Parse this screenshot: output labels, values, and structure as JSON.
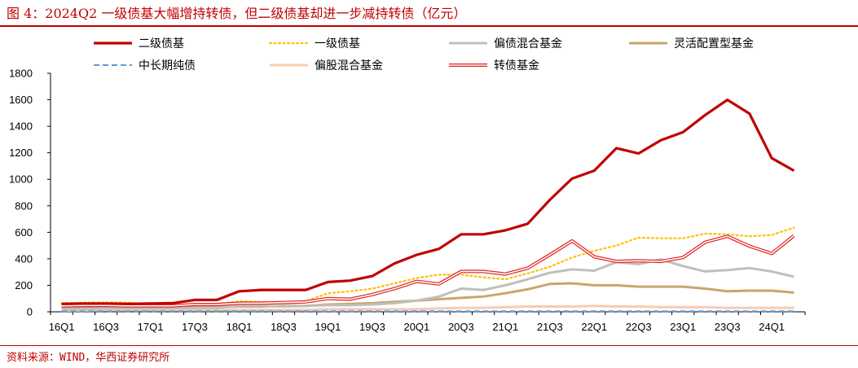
{
  "header": {
    "title": "图 4：2024Q2 一级债基大幅增持转债，但二级债基却进一步减持转债（亿元）"
  },
  "footer": {
    "source": "资料来源：WIND，华西证券研究所"
  },
  "chart_data": {
    "type": "line",
    "categories": [
      "16Q1",
      "16Q2",
      "16Q3",
      "16Q4",
      "17Q1",
      "17Q2",
      "17Q3",
      "17Q4",
      "18Q1",
      "18Q2",
      "18Q3",
      "18Q4",
      "19Q1",
      "19Q2",
      "19Q3",
      "19Q4",
      "20Q1",
      "20Q2",
      "20Q3",
      "20Q4",
      "21Q1",
      "21Q2",
      "21Q3",
      "21Q4",
      "22Q1",
      "22Q2",
      "22Q3",
      "22Q4",
      "23Q1",
      "23Q2",
      "23Q3",
      "23Q4",
      "24Q1",
      "24Q2"
    ],
    "tick_labels": [
      "16Q1",
      "16Q3",
      "17Q1",
      "17Q3",
      "18Q1",
      "18Q3",
      "19Q1",
      "19Q3",
      "20Q1",
      "20Q3",
      "21Q1",
      "21Q3",
      "22Q1",
      "22Q3",
      "23Q1",
      "23Q3",
      "24Q1"
    ],
    "ylim": [
      0,
      1800
    ],
    "yticks": [
      0,
      200,
      400,
      600,
      800,
      1000,
      1200,
      1400,
      1600,
      1800
    ],
    "grid": false,
    "legend_position": "top",
    "series": [
      {
        "name": "二级债基",
        "color": "#c00000",
        "style": "thick",
        "values": [
          60,
          62,
          62,
          60,
          62,
          65,
          90,
          90,
          155,
          165,
          165,
          165,
          225,
          235,
          270,
          365,
          430,
          475,
          585,
          585,
          615,
          665,
          845,
          1005,
          1065,
          1235,
          1195,
          1295,
          1355,
          1485,
          1600,
          1495,
          1160,
          1065
        ]
      },
      {
        "name": "一级债基",
        "color": "#ffc000",
        "style": "dotted",
        "values": [
          65,
          70,
          72,
          70,
          55,
          55,
          55,
          60,
          80,
          75,
          75,
          80,
          140,
          155,
          175,
          215,
          255,
          280,
          280,
          260,
          245,
          290,
          340,
          410,
          460,
          500,
          560,
          555,
          555,
          590,
          585,
          570,
          580,
          635
        ]
      },
      {
        "name": "偏债混合基金",
        "color": "#bfbfbf",
        "style": "solid",
        "values": [
          20,
          22,
          25,
          25,
          25,
          28,
          28,
          30,
          45,
          45,
          40,
          45,
          50,
          50,
          55,
          65,
          85,
          115,
          175,
          165,
          200,
          245,
          295,
          320,
          310,
          375,
          360,
          395,
          345,
          305,
          315,
          330,
          305,
          265
        ]
      },
      {
        "name": "灵活配置型基金",
        "color": "#c9a66b",
        "style": "solid",
        "values": [
          35,
          30,
          35,
          30,
          35,
          35,
          35,
          35,
          40,
          40,
          45,
          45,
          55,
          60,
          65,
          75,
          85,
          95,
          105,
          115,
          140,
          170,
          210,
          215,
          200,
          200,
          190,
          190,
          190,
          175,
          155,
          160,
          160,
          145
        ]
      },
      {
        "name": "中长期纯债",
        "color": "#5b9bd5",
        "style": "dashed",
        "values": [
          5,
          5,
          5,
          5,
          5,
          5,
          5,
          5,
          5,
          5,
          5,
          5,
          5,
          5,
          5,
          5,
          5,
          5,
          5,
          5,
          5,
          5,
          5,
          5,
          5,
          5,
          5,
          5,
          5,
          5,
          5,
          5,
          5,
          5
        ]
      },
      {
        "name": "偏股混合基金",
        "color": "#f8cbad",
        "style": "solid",
        "values": [
          10,
          10,
          12,
          12,
          12,
          12,
          15,
          15,
          15,
          15,
          15,
          15,
          20,
          20,
          20,
          20,
          20,
          25,
          30,
          30,
          35,
          40,
          40,
          40,
          45,
          40,
          40,
          35,
          35,
          35,
          30,
          30,
          30,
          30
        ]
      },
      {
        "name": "转债基金",
        "color": "#e02020",
        "style": "double",
        "values": [
          45,
          48,
          48,
          45,
          45,
          45,
          55,
          55,
          65,
          65,
          70,
          75,
          100,
          95,
          130,
          175,
          230,
          210,
          305,
          305,
          285,
          330,
          430,
          535,
          415,
          380,
          385,
          380,
          410,
          525,
          570,
          495,
          440,
          575
        ]
      }
    ]
  }
}
